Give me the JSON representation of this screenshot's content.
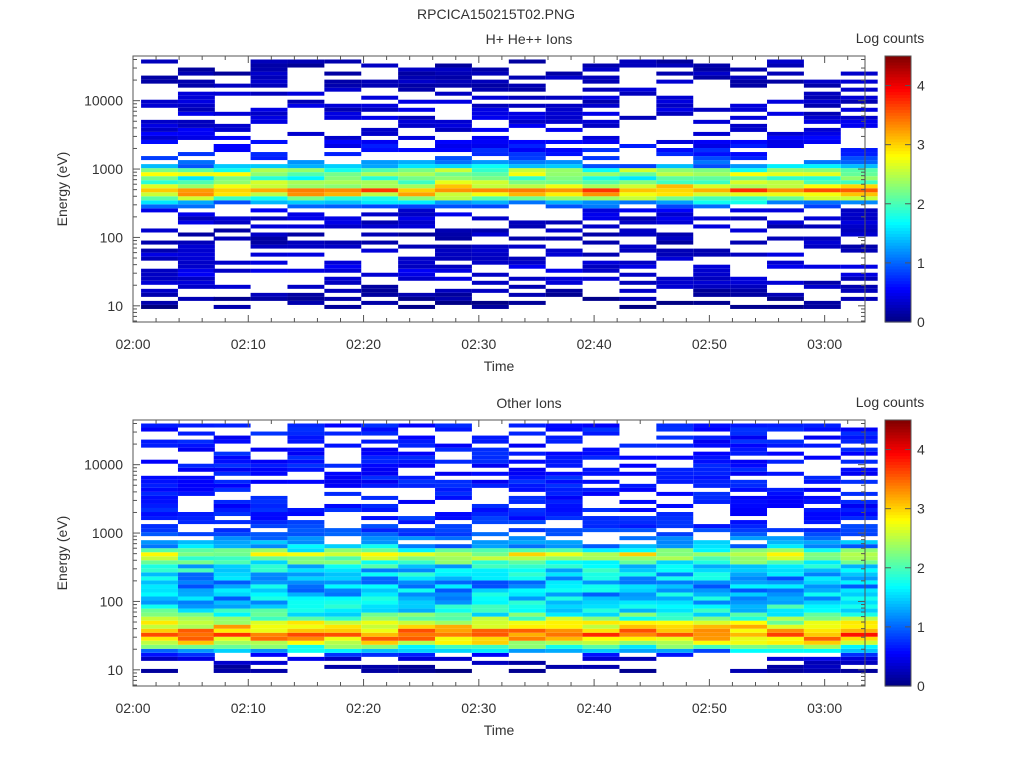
{
  "figure_title": "RPCICA150215T02.PNG",
  "chart_data": [
    {
      "type": "heatmap",
      "title": "H+ He++ Ions",
      "xlabel": "Time",
      "ylabel": "Energy (eV)",
      "colorbar_label": "Log counts",
      "x_ticks": [
        "02:00",
        "02:10",
        "02:20",
        "02:30",
        "02:40",
        "02:50",
        "03:00"
      ],
      "y_ticks": [
        "10",
        "100",
        "1000",
        "10000"
      ],
      "y_scale": "log",
      "ylim": [
        5.8,
        45000
      ],
      "xlim_minutes": [
        0,
        63.5
      ],
      "colorbar_ticks": [
        "0",
        "1",
        "2",
        "3",
        "4"
      ],
      "colorbar_range": [
        0,
        4.5
      ],
      "time_bins_minutes": [
        2.3,
        5.5,
        8.6,
        11.8,
        15.0,
        18.2,
        21.4,
        24.6,
        27.8,
        31.0,
        34.2,
        37.4,
        40.6,
        43.8,
        47.0,
        50.2,
        53.4,
        56.6,
        59.8,
        63.0
      ],
      "energy_profile": [
        {
          "energy_eV": 11,
          "log_counts": 0.0
        },
        {
          "energy_eV": 17,
          "log_counts": 0.1
        },
        {
          "energy_eV": 30,
          "log_counts": 0.3
        },
        {
          "energy_eV": 100,
          "log_counts": 0.1
        },
        {
          "energy_eV": 250,
          "log_counts": 0.3
        },
        {
          "energy_eV": 330,
          "log_counts": 1.4
        },
        {
          "energy_eV": 400,
          "log_counts": 2.6
        },
        {
          "energy_eV": 480,
          "log_counts": 3.4
        },
        {
          "energy_eV": 600,
          "log_counts": 2.4
        },
        {
          "energy_eV": 750,
          "log_counts": 2.0
        },
        {
          "energy_eV": 900,
          "log_counts": 2.6
        },
        {
          "energy_eV": 1100,
          "log_counts": 1.3
        },
        {
          "energy_eV": 1500,
          "log_counts": 0.6
        },
        {
          "energy_eV": 3000,
          "log_counts": 0.3
        },
        {
          "energy_eV": 10000,
          "log_counts": 0.2
        },
        {
          "energy_eV": 30000,
          "log_counts": 0.1
        }
      ]
    },
    {
      "type": "heatmap",
      "title": "Other Ions",
      "xlabel": "Time",
      "ylabel": "Energy (eV)",
      "colorbar_label": "Log counts",
      "x_ticks": [
        "02:00",
        "02:10",
        "02:20",
        "02:30",
        "02:40",
        "02:50",
        "03:00"
      ],
      "y_ticks": [
        "10",
        "100",
        "1000",
        "10000"
      ],
      "y_scale": "log",
      "ylim": [
        5.8,
        45000
      ],
      "xlim_minutes": [
        0,
        63.5
      ],
      "colorbar_ticks": [
        "0",
        "1",
        "2",
        "3",
        "4"
      ],
      "colorbar_range": [
        0,
        4.5
      ],
      "time_bins_minutes": [
        2.3,
        5.5,
        8.6,
        11.8,
        15.0,
        18.2,
        21.4,
        24.6,
        27.8,
        31.0,
        34.2,
        37.4,
        40.6,
        43.8,
        47.0,
        50.2,
        53.4,
        56.6,
        59.8,
        63.0
      ],
      "energy_profile": [
        {
          "energy_eV": 10,
          "log_counts": 0.0
        },
        {
          "energy_eV": 16,
          "log_counts": 0.3
        },
        {
          "energy_eV": 20,
          "log_counts": 1.6
        },
        {
          "energy_eV": 25,
          "log_counts": 2.7
        },
        {
          "energy_eV": 32,
          "log_counts": 3.5
        },
        {
          "energy_eV": 42,
          "log_counts": 2.9
        },
        {
          "energy_eV": 60,
          "log_counts": 2.0
        },
        {
          "energy_eV": 100,
          "log_counts": 1.4
        },
        {
          "energy_eV": 200,
          "log_counts": 1.3
        },
        {
          "energy_eV": 350,
          "log_counts": 1.7
        },
        {
          "energy_eV": 480,
          "log_counts": 2.7
        },
        {
          "energy_eV": 650,
          "log_counts": 1.3
        },
        {
          "energy_eV": 1000,
          "log_counts": 0.7
        },
        {
          "energy_eV": 2000,
          "log_counts": 0.5
        }
      ]
    }
  ]
}
